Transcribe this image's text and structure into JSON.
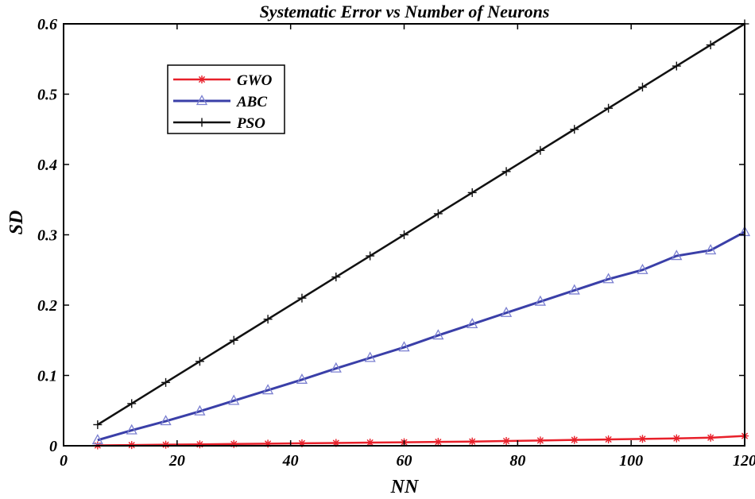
{
  "chart_data": {
    "type": "line",
    "title": "Systematic Error vs Number of Neurons",
    "xlabel": "NN",
    "ylabel": "SD",
    "xlim": [
      0,
      120
    ],
    "ylim": [
      0,
      0.6
    ],
    "xticks": [
      0,
      20,
      40,
      60,
      80,
      100,
      120
    ],
    "yticks": [
      0,
      0.1,
      0.2,
      0.3,
      0.4,
      0.5,
      0.6
    ],
    "xtick_labels": [
      "0",
      "20",
      "40",
      "60",
      "80",
      "100",
      "120"
    ],
    "ytick_labels": [
      "0",
      "0.1",
      "0.2",
      "0.3",
      "0.4",
      "0.5",
      "0.6"
    ],
    "grid": false,
    "legend_position": "top-left",
    "x": [
      6,
      12,
      18,
      24,
      30,
      36,
      42,
      48,
      54,
      60,
      66,
      72,
      78,
      84,
      90,
      96,
      102,
      108,
      114,
      120
    ],
    "series": [
      {
        "name": "GWO",
        "color": "#e8202a",
        "marker": "asterisk",
        "values": [
          0.0005,
          0.001,
          0.0015,
          0.002,
          0.0025,
          0.003,
          0.0035,
          0.004,
          0.0045,
          0.005,
          0.0055,
          0.006,
          0.0068,
          0.0075,
          0.0083,
          0.009,
          0.0098,
          0.0105,
          0.0115,
          0.014
        ]
      },
      {
        "name": "ABC",
        "color": "#3a3fa8",
        "marker": "triangle",
        "values": [
          0.008,
          0.022,
          0.035,
          0.049,
          0.064,
          0.079,
          0.094,
          0.11,
          0.125,
          0.14,
          0.157,
          0.173,
          0.189,
          0.205,
          0.221,
          0.237,
          0.25,
          0.27,
          0.278,
          0.304
        ]
      },
      {
        "name": "PSO",
        "color": "#111111",
        "marker": "plus",
        "values": [
          0.03,
          0.06,
          0.09,
          0.12,
          0.15,
          0.18,
          0.21,
          0.24,
          0.27,
          0.3,
          0.33,
          0.36,
          0.39,
          0.42,
          0.45,
          0.48,
          0.51,
          0.54,
          0.57,
          0.6
        ]
      }
    ]
  }
}
